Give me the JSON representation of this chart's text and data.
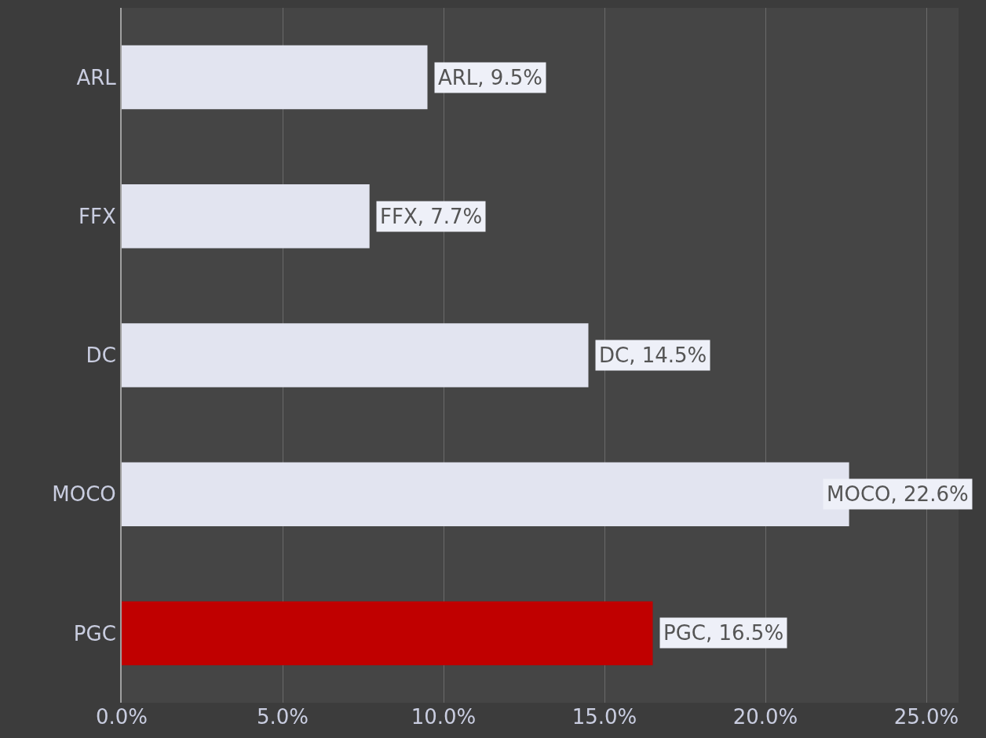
{
  "chart_data": {
    "type": "bar",
    "orientation": "horizontal",
    "categories": [
      "ARL",
      "FFX",
      "DC",
      "MOCO",
      "PGC"
    ],
    "values": [
      9.5,
      7.7,
      14.5,
      22.6,
      16.5
    ],
    "colors": [
      "#e2e4f0",
      "#e2e4f0",
      "#e2e4f0",
      "#e2e4f0",
      "#c00000"
    ],
    "value_labels": [
      "ARL, 9.5%",
      "FFX, 7.7%",
      "DC, 14.5%",
      "MOCO, 22.6%",
      "PGC, 16.5%"
    ],
    "xlim": [
      0,
      26
    ],
    "xticks": [
      {
        "value": 0,
        "label": "0.0%"
      },
      {
        "value": 5,
        "label": "5.0%"
      },
      {
        "value": 10,
        "label": "10.0%"
      },
      {
        "value": 15,
        "label": "15.0%"
      },
      {
        "value": 20,
        "label": "20.0%"
      },
      {
        "value": 25,
        "label": "25.0%"
      }
    ],
    "grid": "x",
    "legend": false
  }
}
